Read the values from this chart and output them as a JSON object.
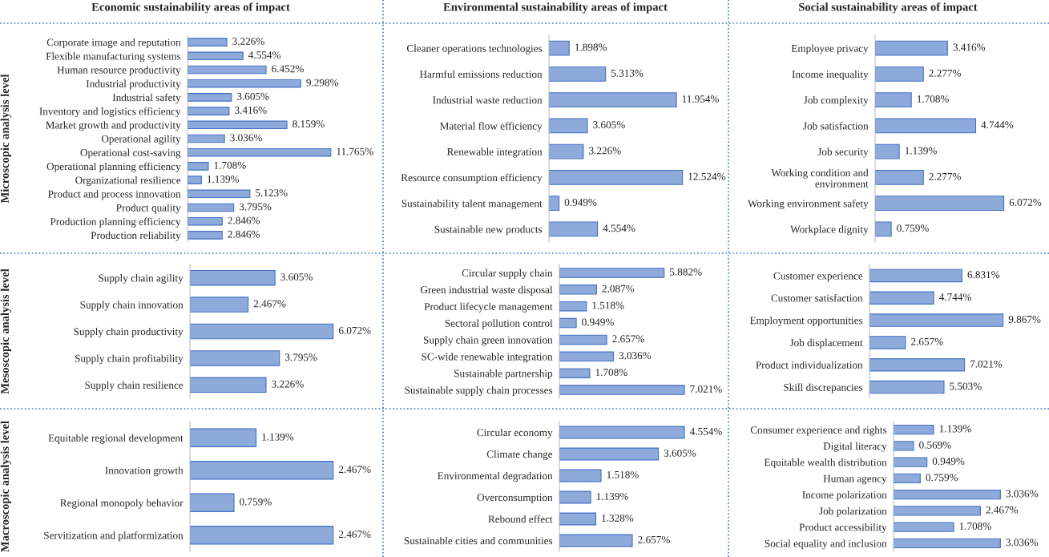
{
  "chart_data": [
    {
      "type": "bar",
      "orientation": "horizontal",
      "title": "Economic sustainability areas of impact",
      "ylabel": "Microscopic analysis level",
      "color": "#8eaadb",
      "categories": [
        "Corporate image and reputation",
        "Flexible manufacturing systems",
        "Human resource productivity",
        "Industrial productivity",
        "Industrial safety",
        "Inventory and logistics efficiency",
        "Market growth and productivity",
        "Operational agility",
        "Operational cost-saving",
        "Operational planning efficiency",
        "Organizational resilience",
        "Product and process innovation",
        "Product quality",
        "Production planning efficiency",
        "Production reliability"
      ],
      "values": [
        3.226,
        4.554,
        6.452,
        9.298,
        3.605,
        3.416,
        8.159,
        3.036,
        11.765,
        1.708,
        1.139,
        5.123,
        3.795,
        2.846,
        2.846
      ],
      "value_labels": [
        "3.226%",
        "4.554%",
        "6.452%",
        "9.298%",
        "3.605%",
        "3.416%",
        "8.159%",
        "3.036%",
        "11.765%",
        "1.708%",
        "1.139%",
        "5.123%",
        "3.795%",
        "2.846%",
        "2.846%"
      ]
    },
    {
      "type": "bar",
      "orientation": "horizontal",
      "title": "Environmental sustainability areas of impact",
      "color": "#8eaadb",
      "categories": [
        "Cleaner operations technologies",
        "Harmful emissions reduction",
        "Industrial waste reduction",
        "Material flow efficiency",
        "Renewable integration",
        "Resource consumption efficiency",
        "Sustainability talent management",
        "Sustainable new products"
      ],
      "values": [
        1.898,
        5.313,
        11.954,
        3.605,
        3.226,
        12.524,
        0.949,
        4.554
      ],
      "value_labels": [
        "1.898%",
        "5.313%",
        "11.954%",
        "3.605%",
        "3.226%",
        "12.524%",
        "0.949%",
        "4.554%"
      ]
    },
    {
      "type": "bar",
      "orientation": "horizontal",
      "title": "Social sustainability areas of impact",
      "color": "#8eaadb",
      "categories": [
        "Employee privacy",
        "Income inequality",
        "Job complexity",
        "Job satisfaction",
        "Job security",
        "Working condition and\nenvironment",
        "Working environment safety",
        "Workplace dignity"
      ],
      "values": [
        3.416,
        2.277,
        1.708,
        4.744,
        1.139,
        2.277,
        6.072,
        0.759
      ],
      "value_labels": [
        "3.416%",
        "2.277%",
        "1.708%",
        "4.744%",
        "1.139%",
        "2.277%",
        "6.072%",
        "0.759%"
      ]
    },
    {
      "type": "bar",
      "orientation": "horizontal",
      "ylabel": "Mesoscopic analysis level",
      "color": "#8eaadb",
      "categories": [
        "Supply chain agility",
        "Supply chain innovation",
        "Supply chain productivity",
        "Supply chain profitability",
        "Supply chain resilience"
      ],
      "values": [
        3.605,
        2.467,
        6.072,
        3.795,
        3.226
      ],
      "value_labels": [
        "3.605%",
        "2.467%",
        "6.072%",
        "3.795%",
        "3.226%"
      ]
    },
    {
      "type": "bar",
      "orientation": "horizontal",
      "color": "#8eaadb",
      "categories": [
        "Circular supply chain",
        "Green industrial waste disposal",
        "Product lifecycle management",
        "Sectoral pollution control",
        "Supply chain green innovation",
        "SC-wide renewable integration",
        "Sustainable partnership",
        "Sustainable supply chain processes"
      ],
      "values": [
        5.882,
        2.087,
        1.518,
        0.949,
        2.657,
        3.036,
        1.708,
        7.021
      ],
      "value_labels": [
        "5.882%",
        "2.087%",
        "1.518%",
        "0.949%",
        "2.657%",
        "3.036%",
        "1.708%",
        "7.021%"
      ]
    },
    {
      "type": "bar",
      "orientation": "horizontal",
      "color": "#8eaadb",
      "categories": [
        "Customer experience",
        "Customer satisfaction",
        "Employment opportunities",
        "Job displacement",
        "Product individualization",
        "Skill discrepancies"
      ],
      "values": [
        6.831,
        4.744,
        9.867,
        2.657,
        7.021,
        5.503
      ],
      "value_labels": [
        "6.831%",
        "4.744%",
        "9.867%",
        "2.657%",
        "7.021%",
        "5.503%"
      ]
    },
    {
      "type": "bar",
      "orientation": "horizontal",
      "ylabel": "Macroscopic analysis level",
      "color": "#8eaadb",
      "categories": [
        "Equitable regional development",
        "Innovation growth",
        "Regional monopoly behavior",
        "Servitization and platformization"
      ],
      "values": [
        1.139,
        2.467,
        0.759,
        2.467
      ],
      "value_labels": [
        "1.139%",
        "2.467%",
        "0.759%",
        "2.467%"
      ]
    },
    {
      "type": "bar",
      "orientation": "horizontal",
      "color": "#8eaadb",
      "categories": [
        "Circular economy",
        "Climate change",
        "Environmental degradation",
        "Overconsumption",
        "Rebound effect",
        "Sustainable cities and communities"
      ],
      "values": [
        4.554,
        3.605,
        1.518,
        1.139,
        1.328,
        2.657
      ],
      "value_labels": [
        "4.554%",
        "3.605%",
        "1.518%",
        "1.139%",
        "1.328%",
        "2.657%"
      ]
    },
    {
      "type": "bar",
      "orientation": "horizontal",
      "color": "#8eaadb",
      "categories": [
        "Consumer experience and rights",
        "Digital literacy",
        "Equitable wealth distribution",
        "Human agency",
        "Income polarization",
        "Job polarization",
        "Product accessibility",
        "Social equality and inclusion"
      ],
      "values": [
        1.139,
        0.569,
        0.949,
        0.759,
        3.036,
        2.467,
        1.708,
        3.036
      ],
      "value_labels": [
        "1.139%",
        "0.569%",
        "0.949%",
        "0.759%",
        "3.036%",
        "2.467%",
        "1.708%",
        "3.036%"
      ]
    }
  ]
}
